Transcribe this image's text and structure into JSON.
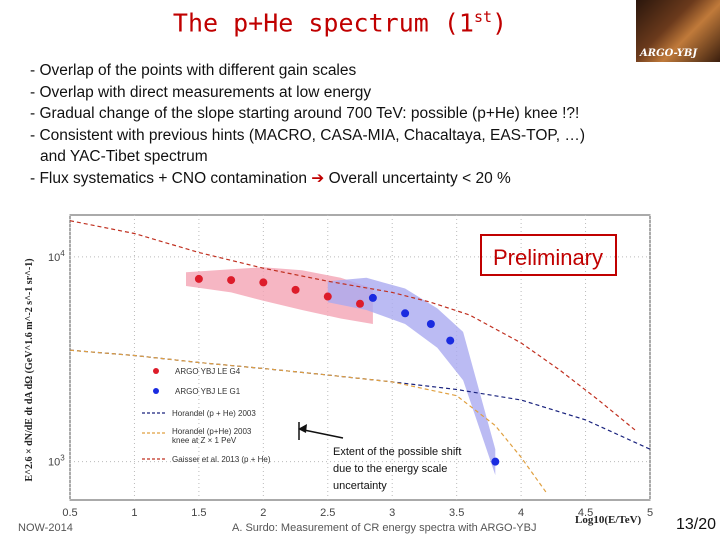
{
  "title": {
    "main": "The p+He spectrum (1",
    "sup": "st",
    "close": ")"
  },
  "logo": {
    "text": "ARGO-YBJ"
  },
  "bullets": [
    "- Overlap of the points with different gain scales",
    "- Overlap with direct measurements at low energy",
    "- Gradual change of the slope starting around 700 TeV: possible (p+He) knee !?!",
    "- Consistent with previous hints (MACRO, CASA-MIA, Chacaltaya, EAS-TOP, …)",
    "and YAC-Tibet spectrum",
    "- Flux systematics + CNO contamination",
    "Overall uncertainty < 20 %"
  ],
  "colors": {
    "red_points": "#dd1c2a",
    "blue_points": "#1a2be0",
    "red_band": "#f4a4b4",
    "blue_band": "#aaaaf0",
    "horandel": "#1a237e",
    "horandel_knee": "#e0a040",
    "gaisser": "#c03020",
    "accent": "#c00000"
  },
  "chart_data": {
    "type": "scatter",
    "xlabel": "Log10(E/TeV)",
    "ylabel": "E^2.6 × dN/dE dt dA dΩ (GeV^1.6 m^-2 s^-1 sr^-1)",
    "x_ticks": [
      "0.5",
      "1",
      "1.5",
      "2",
      "2.5",
      "3",
      "3.5",
      "4",
      "4.5",
      "5"
    ],
    "y_ticks": [
      "10^4",
      "10^3"
    ],
    "xlim": [
      0.5,
      5
    ],
    "ylim": [
      650,
      16000
    ],
    "log_y": true,
    "series": [
      {
        "name": "ARGO YBJ LE G4",
        "marker": "circle",
        "x": [
          1.5,
          1.75,
          2.0,
          2.25,
          2.5,
          2.75
        ],
        "y": [
          7800,
          7700,
          7500,
          6900,
          6400,
          5900
        ]
      },
      {
        "name": "ARGO YBJ LE G1",
        "marker": "circle",
        "x": [
          2.85,
          3.1,
          3.3,
          3.45,
          3.8
        ],
        "y": [
          6300,
          5300,
          4700,
          3900,
          1000
        ]
      },
      {
        "name": "Horandel (p + He) 2003",
        "style": "dashed",
        "x": [
          0.5,
          1,
          1.5,
          2,
          2.5,
          3,
          3.5,
          4,
          4.5,
          5
        ],
        "y": [
          3500,
          3300,
          3050,
          2850,
          2650,
          2450,
          2250,
          2000,
          1600,
          1150
        ]
      },
      {
        "name": "Horandel (p+He) 2003 knee at Z × 1 PeV",
        "style": "dashed",
        "x": [
          0.5,
          1,
          1.5,
          2,
          2.5,
          3,
          3.5,
          3.8,
          4,
          4.2
        ],
        "y": [
          3500,
          3300,
          3050,
          2850,
          2650,
          2450,
          2100,
          1500,
          1050,
          700
        ]
      },
      {
        "name": "Gaisser et al. 2013 (p + He)",
        "style": "dashed",
        "x": [
          0.5,
          1,
          1.5,
          2,
          2.5,
          3,
          3.3,
          3.6,
          4,
          4.3,
          4.6,
          4.9
        ],
        "y": [
          15000,
          13000,
          10500,
          8800,
          7600,
          6700,
          6000,
          5200,
          3800,
          2800,
          2000,
          1400
        ]
      }
    ],
    "bands": [
      {
        "series": "ARGO YBJ LE G4",
        "x": [
          1.4,
          1.75,
          2.0,
          2.3,
          2.6,
          2.85
        ],
        "upper": [
          8400,
          8700,
          8900,
          8600,
          7900,
          7000
        ],
        "lower": [
          7200,
          6700,
          6100,
          5500,
          5000,
          4700
        ]
      },
      {
        "series": "ARGO YBJ LE G1",
        "x": [
          2.5,
          2.8,
          3.1,
          3.35,
          3.55,
          3.8
        ],
        "upper": [
          7600,
          7900,
          7000,
          5600,
          4300,
          1150
        ],
        "lower": [
          6000,
          5500,
          4700,
          3600,
          2500,
          860
        ]
      }
    ],
    "annotations": {
      "preliminary": "Preliminary",
      "shift_note": [
        "Extent of  the possible shift",
        "due to the energy scale",
        "uncertainty"
      ]
    }
  },
  "footer": {
    "left": "NOW-2014",
    "center": "A. Surdo: Measurement of CR energy spectra with ARGO-YBJ",
    "page": "13/20"
  }
}
